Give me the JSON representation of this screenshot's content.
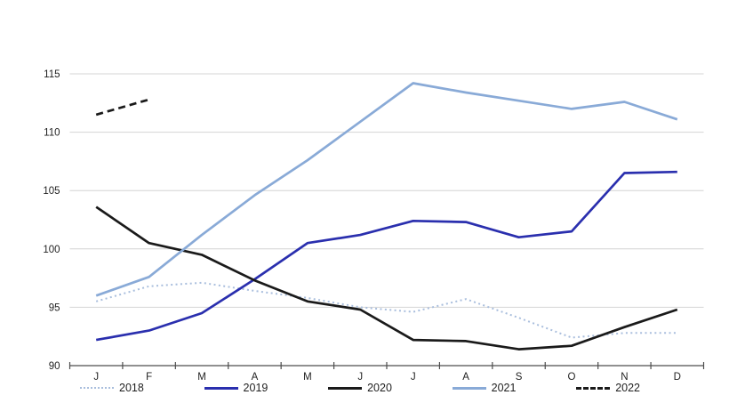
{
  "chart_data": {
    "type": "line",
    "title": "",
    "xlabel": "",
    "ylabel": "",
    "x_categories": [
      "J",
      "F",
      "M",
      "A",
      "M",
      "J",
      "J",
      "A",
      "S",
      "O",
      "N",
      "D"
    ],
    "y_ticks": [
      90,
      95,
      100,
      105,
      110,
      115
    ],
    "ylim": [
      90,
      115
    ],
    "grid": "horizontal",
    "legend_position": "bottom",
    "series": [
      {
        "name": "2018",
        "style": "dotted",
        "color": "#a9bedd",
        "values": [
          95.5,
          96.8,
          97.1,
          96.4,
          95.8,
          95.0,
          94.6,
          95.7,
          94.1,
          92.4,
          92.8,
          92.8
        ]
      },
      {
        "name": "2019",
        "style": "solid",
        "color": "#2a2fae",
        "values": [
          92.2,
          93.0,
          94.5,
          97.4,
          100.5,
          101.2,
          102.4,
          102.3,
          101.0,
          101.5,
          106.5,
          106.6
        ]
      },
      {
        "name": "2020",
        "style": "solid",
        "color": "#1a1a1a",
        "values": [
          103.6,
          100.5,
          99.5,
          97.3,
          95.5,
          94.8,
          92.2,
          92.1,
          91.4,
          91.7,
          93.3,
          94.8
        ]
      },
      {
        "name": "2021",
        "style": "solid",
        "color": "#89aad7",
        "values": [
          96.0,
          97.6,
          101.2,
          104.6,
          107.6,
          110.9,
          114.2,
          113.4,
          112.7,
          112.0,
          112.6,
          111.1
        ]
      },
      {
        "name": "2022",
        "style": "dashed",
        "color": "#1a1a1a",
        "values": [
          111.5,
          112.8,
          null,
          null,
          null,
          null,
          null,
          null,
          null,
          null,
          null,
          null
        ]
      }
    ]
  },
  "colors": {
    "gridline": "#d4d4d4",
    "axis": "#4d4d4d",
    "tick_label": "#1f1f1f",
    "background": "#ffffff"
  }
}
